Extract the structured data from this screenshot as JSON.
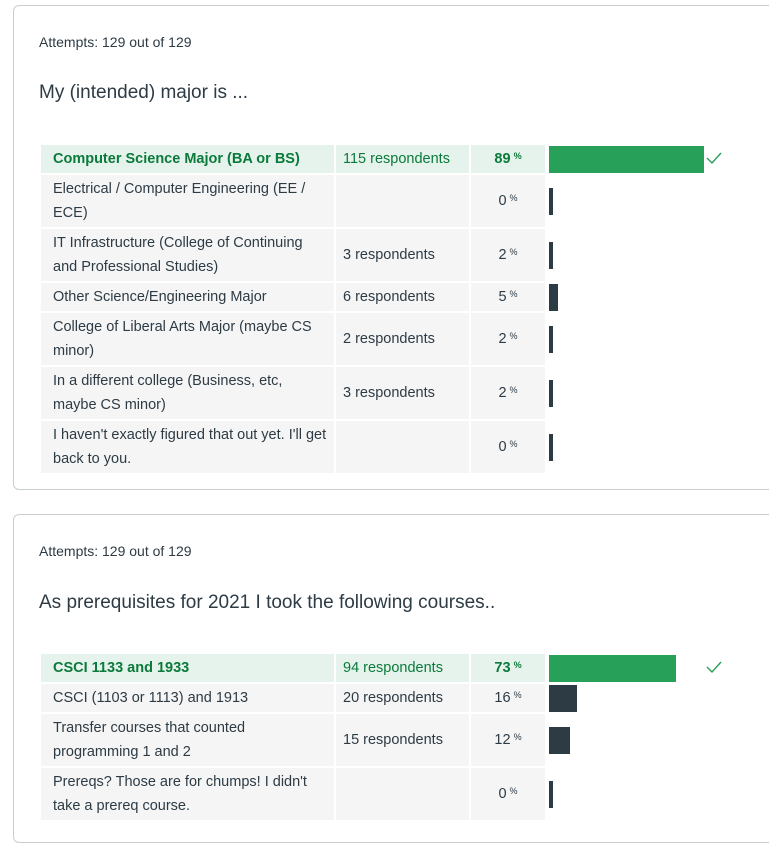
{
  "colors": {
    "correct_bg": "#e5f3ec",
    "correct_bar": "#27a05a",
    "bar": "#2d3b45",
    "cell_bg": "#f5f5f5"
  },
  "questions": [
    {
      "attempts": "Attempts: 129 out of 129",
      "question": "My (intended) major is ...",
      "answers": [
        {
          "text": "Computer Science Major (BA or BS)",
          "respondents": "115 respondents",
          "percent": "89",
          "correct": true
        },
        {
          "text": "Electrical / Computer Engineering (EE / ECE)",
          "respondents": "",
          "percent": "0",
          "correct": false
        },
        {
          "text": "IT Infrastructure (College of Continuing and Professional Studies)",
          "respondents": "3 respondents",
          "percent": "2",
          "correct": false
        },
        {
          "text": "Other Science/Engineering Major",
          "respondents": "6 respondents",
          "percent": "5",
          "correct": false
        },
        {
          "text": "College of Liberal Arts Major (maybe CS minor)",
          "respondents": "2 respondents",
          "percent": "2",
          "correct": false
        },
        {
          "text": "In a different college (Business, etc, maybe CS minor)",
          "respondents": "3 respondents",
          "percent": "2",
          "correct": false
        },
        {
          "text": "I haven't exactly figured that out yet. I'll get back to you.",
          "respondents": "",
          "percent": "0",
          "correct": false
        }
      ]
    },
    {
      "attempts": "Attempts: 129 out of 129",
      "question": "As prerequisites for 2021 I took the following courses..",
      "answers": [
        {
          "text": "CSCI 1133 and 1933",
          "respondents": "94 respondents",
          "percent": "73",
          "correct": true
        },
        {
          "text": "CSCI (1103 or 1113) and 1913",
          "respondents": "20 respondents",
          "percent": "16",
          "correct": false
        },
        {
          "text": "Transfer courses that counted programming 1 and 2",
          "respondents": "15 respondents",
          "percent": "12",
          "correct": false
        },
        {
          "text": "Prereqs? Those are for chumps! I didn't take a prereq course.",
          "respondents": "",
          "percent": "0",
          "correct": false
        }
      ]
    }
  ],
  "percent_symbol": "%"
}
